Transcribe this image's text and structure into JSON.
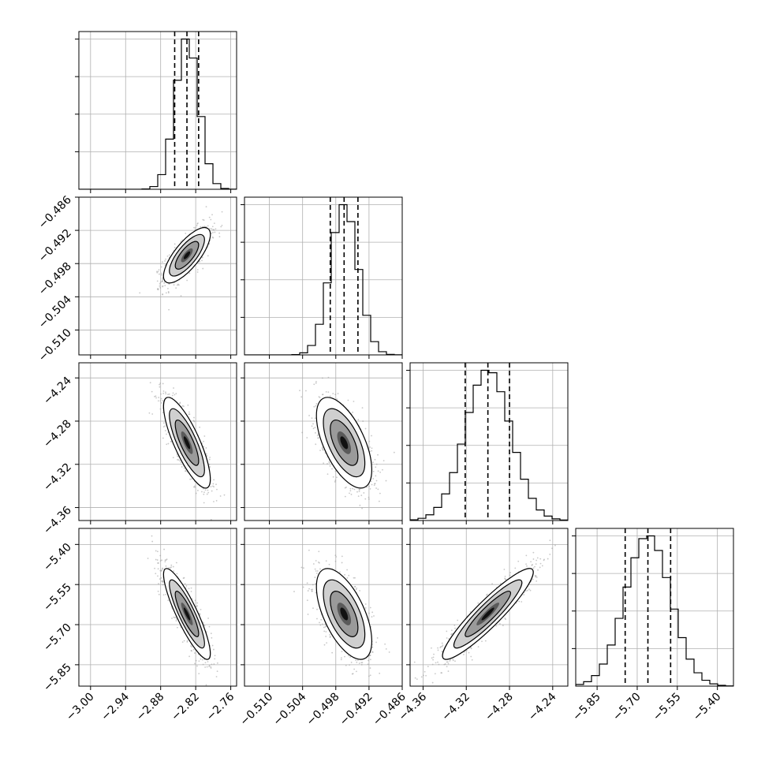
{
  "chart_data": {
    "type": "corner",
    "grid": true,
    "params": [
      {
        "mean": -2.835,
        "sd": 0.02,
        "quantiles": [
          -2.856,
          -2.835,
          -2.815
        ],
        "range": [
          -3.02,
          -2.75
        ],
        "ticks": [
          -3.0,
          -2.94,
          -2.88,
          -2.82,
          -2.76
        ],
        "tick_labels": [
          "−3.00",
          "−2.94",
          "−2.88",
          "−2.82",
          "−2.76"
        ]
      },
      {
        "mean": -0.4965,
        "sd": 0.0025,
        "quantiles": [
          -0.499,
          -0.4965,
          -0.494
        ],
        "range": [
          -0.5145,
          -0.486
        ],
        "ticks": [
          -0.51,
          -0.504,
          -0.498,
          -0.492,
          -0.486
        ],
        "tick_labels": [
          "−0.510",
          "−0.504",
          "−0.498",
          "−0.492",
          "−0.486"
        ]
      },
      {
        "mean": -4.3,
        "sd": 0.021,
        "quantiles": [
          -4.321,
          -4.3,
          -4.28
        ],
        "range": [
          -4.372,
          -4.226
        ],
        "ticks": [
          -4.36,
          -4.32,
          -4.28,
          -4.24
        ],
        "tick_labels": [
          "−4.36",
          "−4.32",
          "−4.28",
          "−4.24"
        ]
      },
      {
        "mean": -5.66,
        "sd": 0.085,
        "quantiles": [
          -5.745,
          -5.66,
          -5.575
        ],
        "range": [
          -5.93,
          -5.34
        ],
        "ticks": [
          -5.85,
          -5.7,
          -5.55,
          -5.4
        ],
        "tick_labels": [
          "−5.85",
          "−5.70",
          "−5.55",
          "−5.40"
        ]
      }
    ],
    "correlations": {
      "1-0": 0.75,
      "2-0": -0.8,
      "2-1": -0.6,
      "3-0": -0.87,
      "3-1": -0.6,
      "3-2": 0.92
    },
    "histogram_bins": 20,
    "contour_levels_sigma": [
      0.5,
      1.0,
      1.5,
      2.0
    ],
    "quantile_line_style": "dashed",
    "colors": {
      "line": "#000000",
      "grid": "#b0b0b0",
      "points": "#9a9a9a"
    }
  }
}
